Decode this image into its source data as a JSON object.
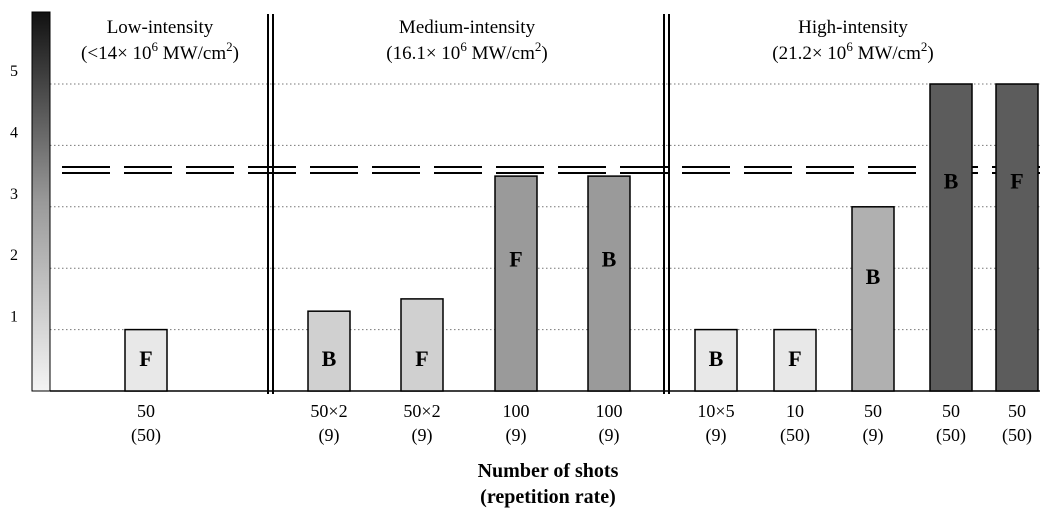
{
  "chart_data": {
    "type": "bar",
    "ylim": [
      0,
      6
    ],
    "yticks": [
      1,
      2,
      3,
      4,
      5
    ],
    "threshold": 3.6,
    "xlabel_line1": "Number of shots",
    "xlabel_line2": "(repetition rate)",
    "groups": [
      {
        "title_line1": "Low-intensity",
        "title_line2_prefix": "(<14× 10",
        "exp": "6",
        "title_line2_mid": " MW/cm",
        "exp2": "2",
        "title_line2_suffix": ")"
      },
      {
        "title_line1": "Medium-intensity",
        "title_line2_prefix": "(16.1× 10",
        "exp": "6",
        "title_line2_mid": " MW/cm",
        "exp2": "2",
        "title_line2_suffix": ")"
      },
      {
        "title_line1": "High-intensity",
        "title_line2_prefix": "(21.2× 10",
        "exp": "6",
        "title_line2_mid": " MW/cm",
        "exp2": "2",
        "title_line2_suffix": ")"
      }
    ],
    "bars": [
      {
        "label": "F",
        "value": 1.0,
        "shots": "50",
        "rate": "(50)",
        "color": "#e8e8e8"
      },
      {
        "label": "B",
        "value": 1.3,
        "shots": "50×2",
        "rate": "(9)",
        "color": "#d0d0d0"
      },
      {
        "label": "F",
        "value": 1.5,
        "shots": "50×2",
        "rate": "(9)",
        "color": "#d0d0d0"
      },
      {
        "label": "F",
        "value": 3.5,
        "shots": "100",
        "rate": "(9)",
        "color": "#9a9a9a"
      },
      {
        "label": "B",
        "value": 3.5,
        "shots": "100",
        "rate": "(9)",
        "color": "#9a9a9a"
      },
      {
        "label": "B",
        "value": 1.0,
        "shots": "10×5",
        "rate": "(9)",
        "color": "#e8e8e8"
      },
      {
        "label": "F",
        "value": 1.0,
        "shots": "10",
        "rate": "(50)",
        "color": "#e8e8e8"
      },
      {
        "label": "B",
        "value": 3.0,
        "shots": "50",
        "rate": "(9)",
        "color": "#b0b0b0"
      },
      {
        "label": "B",
        "value": 5.0,
        "shots": "50",
        "rate": "(50)",
        "color": "#5c5c5c"
      },
      {
        "label": "F",
        "value": 5.0,
        "shots": "50",
        "rate": "(50)",
        "color": "#5c5c5c"
      }
    ]
  }
}
